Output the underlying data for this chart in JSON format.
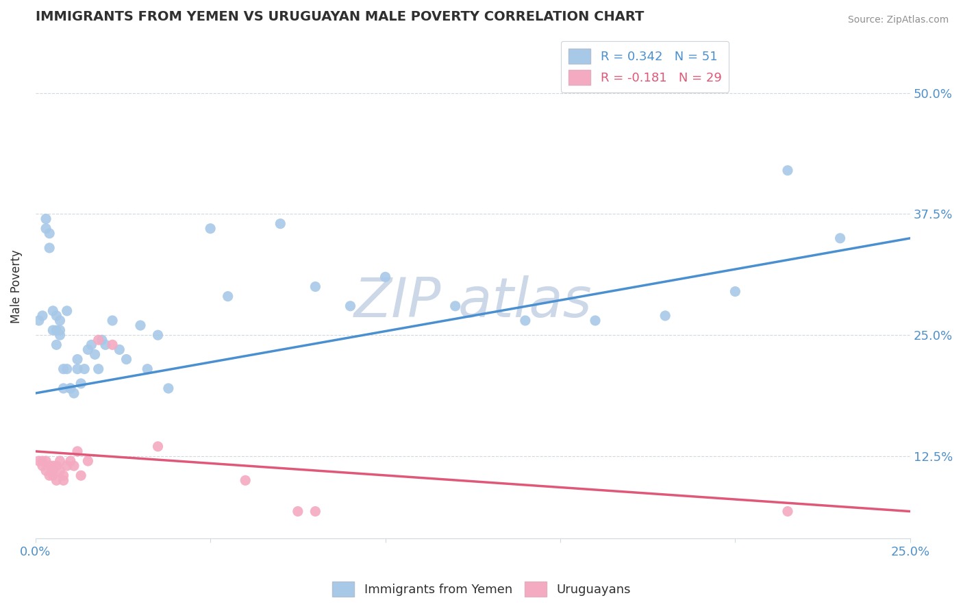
{
  "title": "IMMIGRANTS FROM YEMEN VS URUGUAYAN MALE POVERTY CORRELATION CHART",
  "source": "Source: ZipAtlas.com",
  "ylabel": "Male Poverty",
  "ylabel_right_ticks": [
    "50.0%",
    "37.5%",
    "25.0%",
    "12.5%"
  ],
  "ylabel_right_vals": [
    0.5,
    0.375,
    0.25,
    0.125
  ],
  "xlim": [
    0.0,
    0.25
  ],
  "ylim": [
    0.04,
    0.56
  ],
  "watermark_text": "ZIP atlas",
  "legend_blue_label": "R = 0.342   N = 51",
  "legend_pink_label": "R = -0.181   N = 29",
  "blue_scatter_x": [
    0.001,
    0.002,
    0.003,
    0.003,
    0.004,
    0.004,
    0.005,
    0.005,
    0.006,
    0.006,
    0.006,
    0.007,
    0.007,
    0.007,
    0.008,
    0.008,
    0.009,
    0.009,
    0.01,
    0.01,
    0.011,
    0.012,
    0.012,
    0.013,
    0.014,
    0.015,
    0.016,
    0.017,
    0.018,
    0.019,
    0.02,
    0.022,
    0.024,
    0.026,
    0.03,
    0.032,
    0.035,
    0.038,
    0.05,
    0.055,
    0.07,
    0.08,
    0.09,
    0.1,
    0.12,
    0.14,
    0.16,
    0.18,
    0.2,
    0.215,
    0.23
  ],
  "blue_scatter_y": [
    0.265,
    0.27,
    0.36,
    0.37,
    0.355,
    0.34,
    0.275,
    0.255,
    0.27,
    0.255,
    0.24,
    0.265,
    0.255,
    0.25,
    0.215,
    0.195,
    0.275,
    0.215,
    0.195,
    0.195,
    0.19,
    0.225,
    0.215,
    0.2,
    0.215,
    0.235,
    0.24,
    0.23,
    0.215,
    0.245,
    0.24,
    0.265,
    0.235,
    0.225,
    0.26,
    0.215,
    0.25,
    0.195,
    0.36,
    0.29,
    0.365,
    0.3,
    0.28,
    0.31,
    0.28,
    0.265,
    0.265,
    0.27,
    0.295,
    0.42,
    0.35
  ],
  "pink_scatter_x": [
    0.001,
    0.002,
    0.002,
    0.003,
    0.003,
    0.004,
    0.004,
    0.005,
    0.005,
    0.005,
    0.006,
    0.006,
    0.007,
    0.007,
    0.008,
    0.008,
    0.009,
    0.01,
    0.011,
    0.012,
    0.013,
    0.015,
    0.018,
    0.022,
    0.035,
    0.06,
    0.075,
    0.08,
    0.215
  ],
  "pink_scatter_y": [
    0.12,
    0.115,
    0.12,
    0.11,
    0.12,
    0.105,
    0.115,
    0.11,
    0.105,
    0.115,
    0.1,
    0.115,
    0.12,
    0.11,
    0.105,
    0.1,
    0.115,
    0.12,
    0.115,
    0.13,
    0.105,
    0.12,
    0.245,
    0.24,
    0.135,
    0.1,
    0.068,
    0.068,
    0.068
  ],
  "blue_line_x": [
    0.0,
    0.25
  ],
  "blue_line_y": [
    0.19,
    0.35
  ],
  "pink_line_x": [
    0.0,
    0.25
  ],
  "pink_line_y": [
    0.13,
    0.068
  ],
  "blue_color": "#a8c8e8",
  "pink_color": "#f4aac0",
  "blue_line_color": "#4a90d0",
  "pink_line_color": "#e05878",
  "grid_color": "#d0d8e0",
  "bg_color": "#ffffff",
  "title_color": "#303030",
  "source_color": "#909090",
  "tick_color": "#5090c8",
  "watermark_color": "#ccd8e8"
}
